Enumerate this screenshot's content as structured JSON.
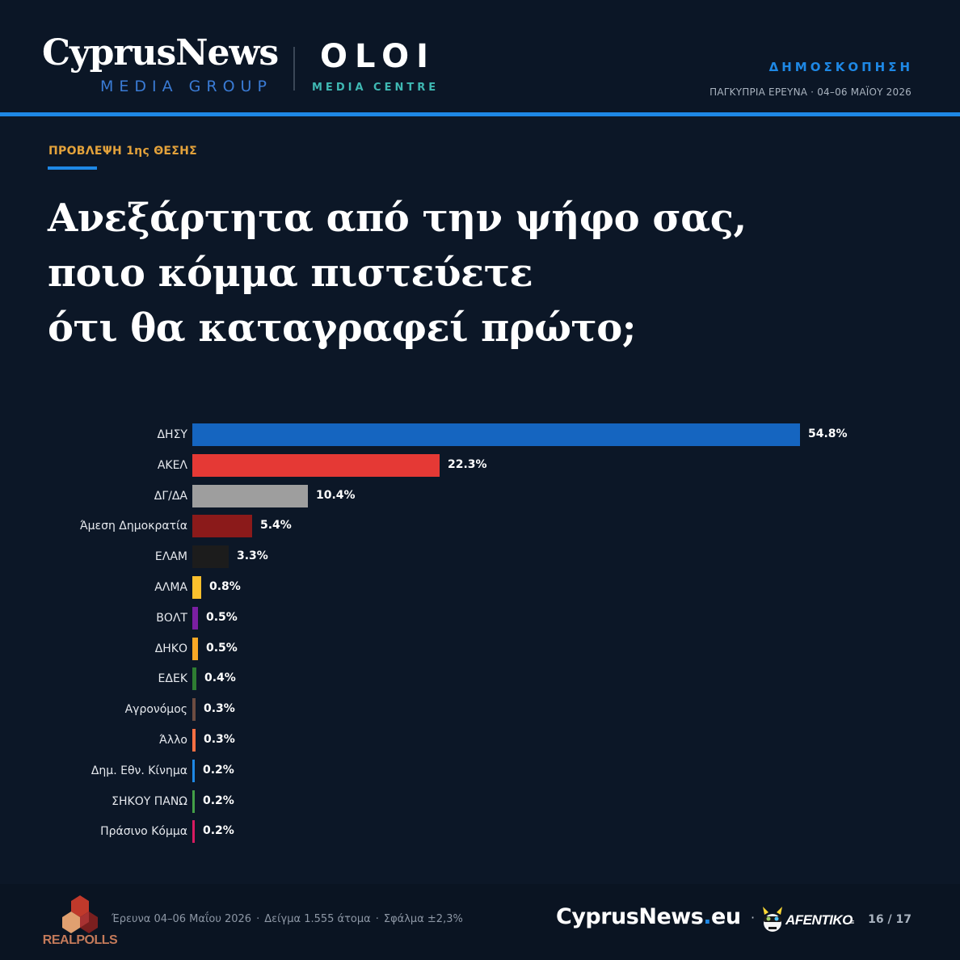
{
  "header": {
    "brand_main": "CyprusNews",
    "brand_sub": "MEDIA GROUP",
    "partner_main": "OLOI",
    "partner_sub": "MEDIA CENTRE",
    "survey_label": "ΔΗΜΟΣΚΟΠΗΣΗ",
    "survey_meta": "ΠΑΓΚΥΠΡΙΑ ΕΡΕΥΝΑ · 04–06 ΜΑΪΟΥ 2026"
  },
  "question": {
    "eyebrow": "ΠΡΟΒΛΕΨΗ 1ης ΘΕΣΗΣ",
    "line1": "Ανεξάρτητα από την ψήφο σας,",
    "line2": "ποιο κόμμα πιστεύετε",
    "line3": "ότι θα καταγραφεί πρώτο;"
  },
  "chart_data": {
    "type": "bar",
    "orientation": "horizontal",
    "title": "",
    "xlabel": "",
    "ylabel": "",
    "grid": false,
    "xlim": [
      0,
      54.8
    ],
    "categories": [
      "ΔΗΣΥ",
      "ΑΚΕΛ",
      "ΔΓ/ΔΑ",
      "Άμεση Δημοκρατία",
      "ΕΛΑΜ",
      "ΑΛΜΑ",
      "ΒΟΛΤ",
      "ΔΗΚΟ",
      "ΕΔΕΚ",
      "Αγρονόμος",
      "Άλλο",
      "Δημ. Εθν. Κίνημα",
      "ΣΗΚΟΥ ΠΑΝΩ",
      "Πράσινο Κόμμα"
    ],
    "values": [
      54.8,
      22.3,
      10.4,
      5.4,
      3.3,
      0.8,
      0.5,
      0.5,
      0.4,
      0.3,
      0.3,
      0.2,
      0.2,
      0.2
    ],
    "value_labels": [
      "54.8%",
      "22.3%",
      "10.4%",
      "5.4%",
      "3.3%",
      "0.8%",
      "0.5%",
      "0.5%",
      "0.4%",
      "0.3%",
      "0.3%",
      "0.2%",
      "0.2%",
      "0.2%"
    ],
    "colors": [
      "#1565c0",
      "#e53935",
      "#9e9e9e",
      "#8b1a1a",
      "#1c1c1c",
      "#fbc02d",
      "#7b1fa2",
      "#f9a825",
      "#2e7d32",
      "#6d4c41",
      "#ff7043",
      "#1e88e5",
      "#43a047",
      "#d81b60"
    ]
  },
  "footer": {
    "pollster": "REALPOLLS",
    "meta_dates": "Έρευνα 04–06 Μαΐου 2026",
    "meta_sample": "Δείγμα 1.555 άτομα",
    "meta_error": "Σφάλμα ±2,3%",
    "site_name": "CyprusNews",
    "site_tld": "eu",
    "partner": "AFENTIKO",
    "page": "16 / 17"
  }
}
